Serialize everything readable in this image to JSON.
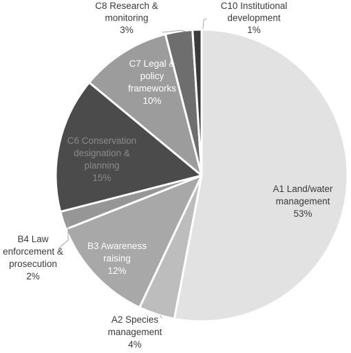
{
  "chart_data": {
    "type": "pie",
    "title": "",
    "slices": [
      {
        "name": "A1 Land/water management",
        "value": 53,
        "label_lines": [
          "A1 Land/water",
          "management",
          "53%"
        ],
        "color": "#e2e2e2"
      },
      {
        "name": "A2 Species management",
        "value": 4,
        "label_lines": [
          "A2 Species",
          "management",
          "4%"
        ],
        "color": "#bdbdbd"
      },
      {
        "name": "B3 Awareness raising",
        "value": 12,
        "label_lines": [
          "B3 Awareness",
          "raising",
          "12%"
        ],
        "color": "#a8a8a8"
      },
      {
        "name": "B4 Law enforcement & prosecution",
        "value": 2,
        "label_lines": [
          "B4 Law",
          "enforcement &",
          "prosecution",
          "2%"
        ],
        "color": "#969696"
      },
      {
        "name": "C6 Conservation designation & planning",
        "value": 15,
        "label_lines": [
          "C6 Conservation",
          "designation &",
          "planning",
          "15%"
        ],
        "color": "#4b4b4b"
      },
      {
        "name": "C7 Legal & policy frameworks",
        "value": 10,
        "label_lines": [
          "C7 Legal &",
          "policy",
          "frameworks",
          "10%"
        ],
        "color": "#9c9c9c"
      },
      {
        "name": "C8 Research & monitoring",
        "value": 3,
        "label_lines": [
          "C8 Research &",
          "monitoring",
          "3%"
        ],
        "color": "#6e6e6e"
      },
      {
        "name": "C10 Institutional development",
        "value": 1,
        "label_lines": [
          "C10 Institutional",
          "development",
          "1%"
        ],
        "color": "#3c3c3c"
      }
    ]
  }
}
